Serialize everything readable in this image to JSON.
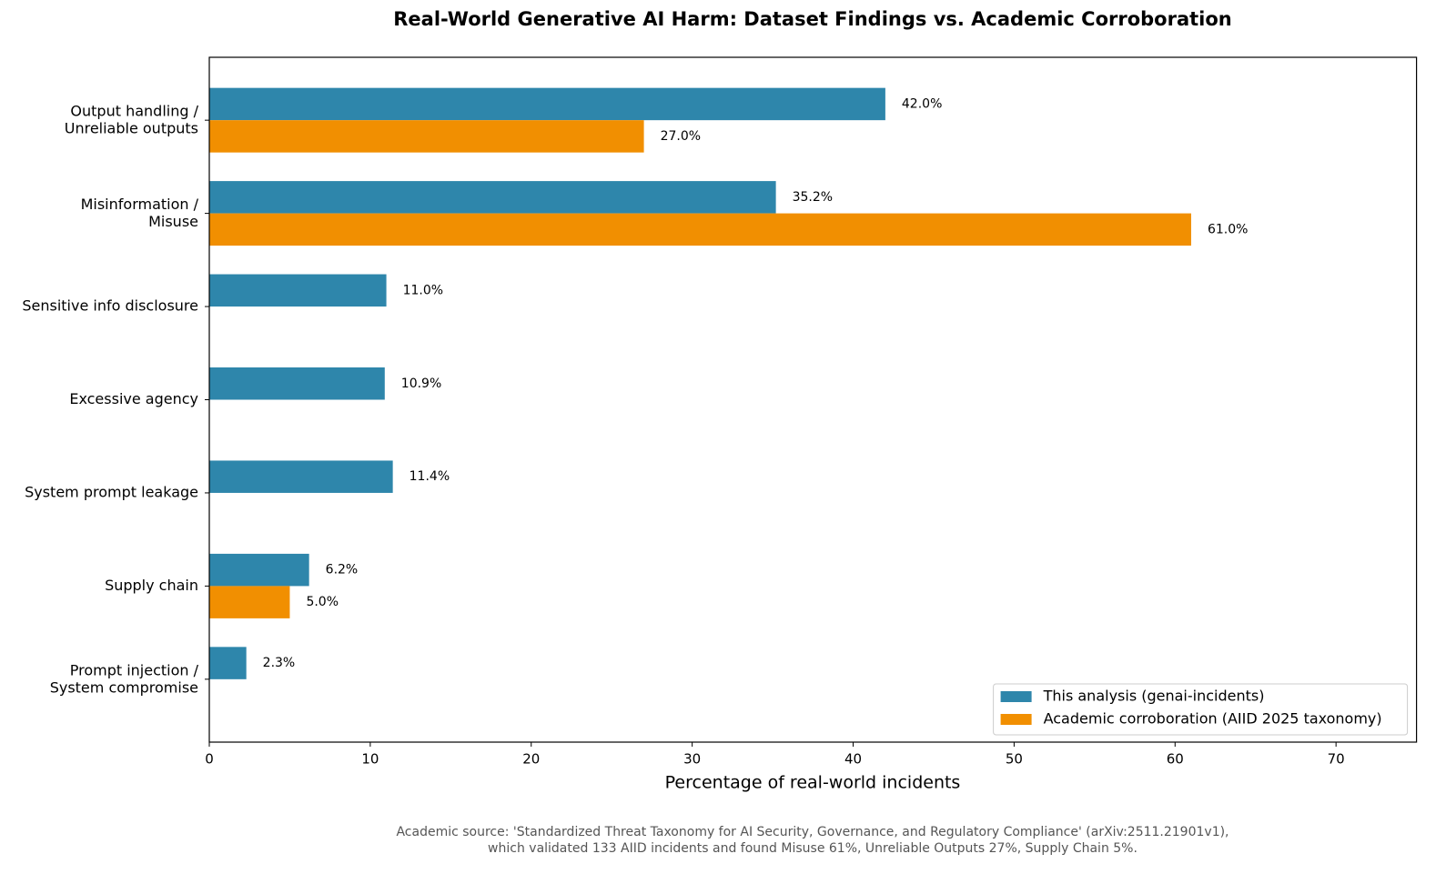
{
  "chart_data": {
    "type": "hbar",
    "title": "Real-World Generative AI Harm: Dataset Findings vs. Academic Corroboration",
    "categories": [
      "Output handling /\nUnreliable outputs",
      "Misinformation /\nMisuse",
      "Sensitive info disclosure",
      "Excessive agency",
      "System prompt leakage",
      "Supply chain",
      "Prompt injection /\nSystem compromise"
    ],
    "series": [
      {
        "name": "This analysis (genai-incidents)",
        "color": "#2e86ab",
        "values": [
          42.0,
          35.2,
          11.0,
          10.9,
          11.4,
          6.2,
          2.3
        ],
        "value_labels": [
          "42.0%",
          "35.2%",
          "11.0%",
          "10.9%",
          "11.4%",
          "6.2%",
          "2.3%"
        ]
      },
      {
        "name": "Academic corroboration (AIID 2025 taxonomy)",
        "color": "#f18f01",
        "values": [
          27.0,
          61.0,
          null,
          null,
          null,
          5.0,
          null
        ],
        "value_labels": [
          "27.0%",
          "61.0%",
          null,
          null,
          null,
          "5.0%",
          null
        ]
      }
    ],
    "xlabel": "Percentage of real-world incidents",
    "xlim": [
      0,
      75
    ],
    "xticks": [
      0,
      10,
      20,
      30,
      40,
      50,
      60,
      70
    ],
    "legend": "lower right",
    "footnote": [
      "Academic source: 'Standardized Threat Taxonomy for AI Security, Governance, and Regulatory Compliance' (arXiv:2511.21901v1),",
      "which validated 133 AIID incidents and found Misuse 61%, Unreliable Outputs 27%, Supply Chain 5%."
    ]
  }
}
